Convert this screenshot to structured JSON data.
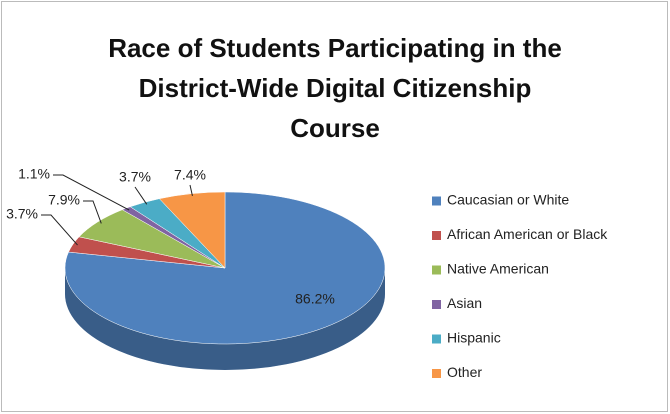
{
  "chart_data": {
    "type": "pie3d",
    "title": [
      "Race of Students Participating in the",
      "District-Wide Digital Citizenship",
      "Course"
    ],
    "categories": [
      "Caucasian or White",
      "African American or Black",
      "Native American",
      "Asian",
      "Hispanic",
      "Other"
    ],
    "values": [
      86.2,
      3.7,
      7.9,
      1.1,
      3.7,
      7.4
    ],
    "value_labels": [
      "86.2%",
      "3.7%",
      "7.9%",
      "1.1%",
      "3.7%",
      "7.4%"
    ],
    "colors": [
      "#4f81bd",
      "#c0504d",
      "#9bbb59",
      "#8064a2",
      "#4bacc6",
      "#f79646"
    ],
    "legend": "right"
  }
}
